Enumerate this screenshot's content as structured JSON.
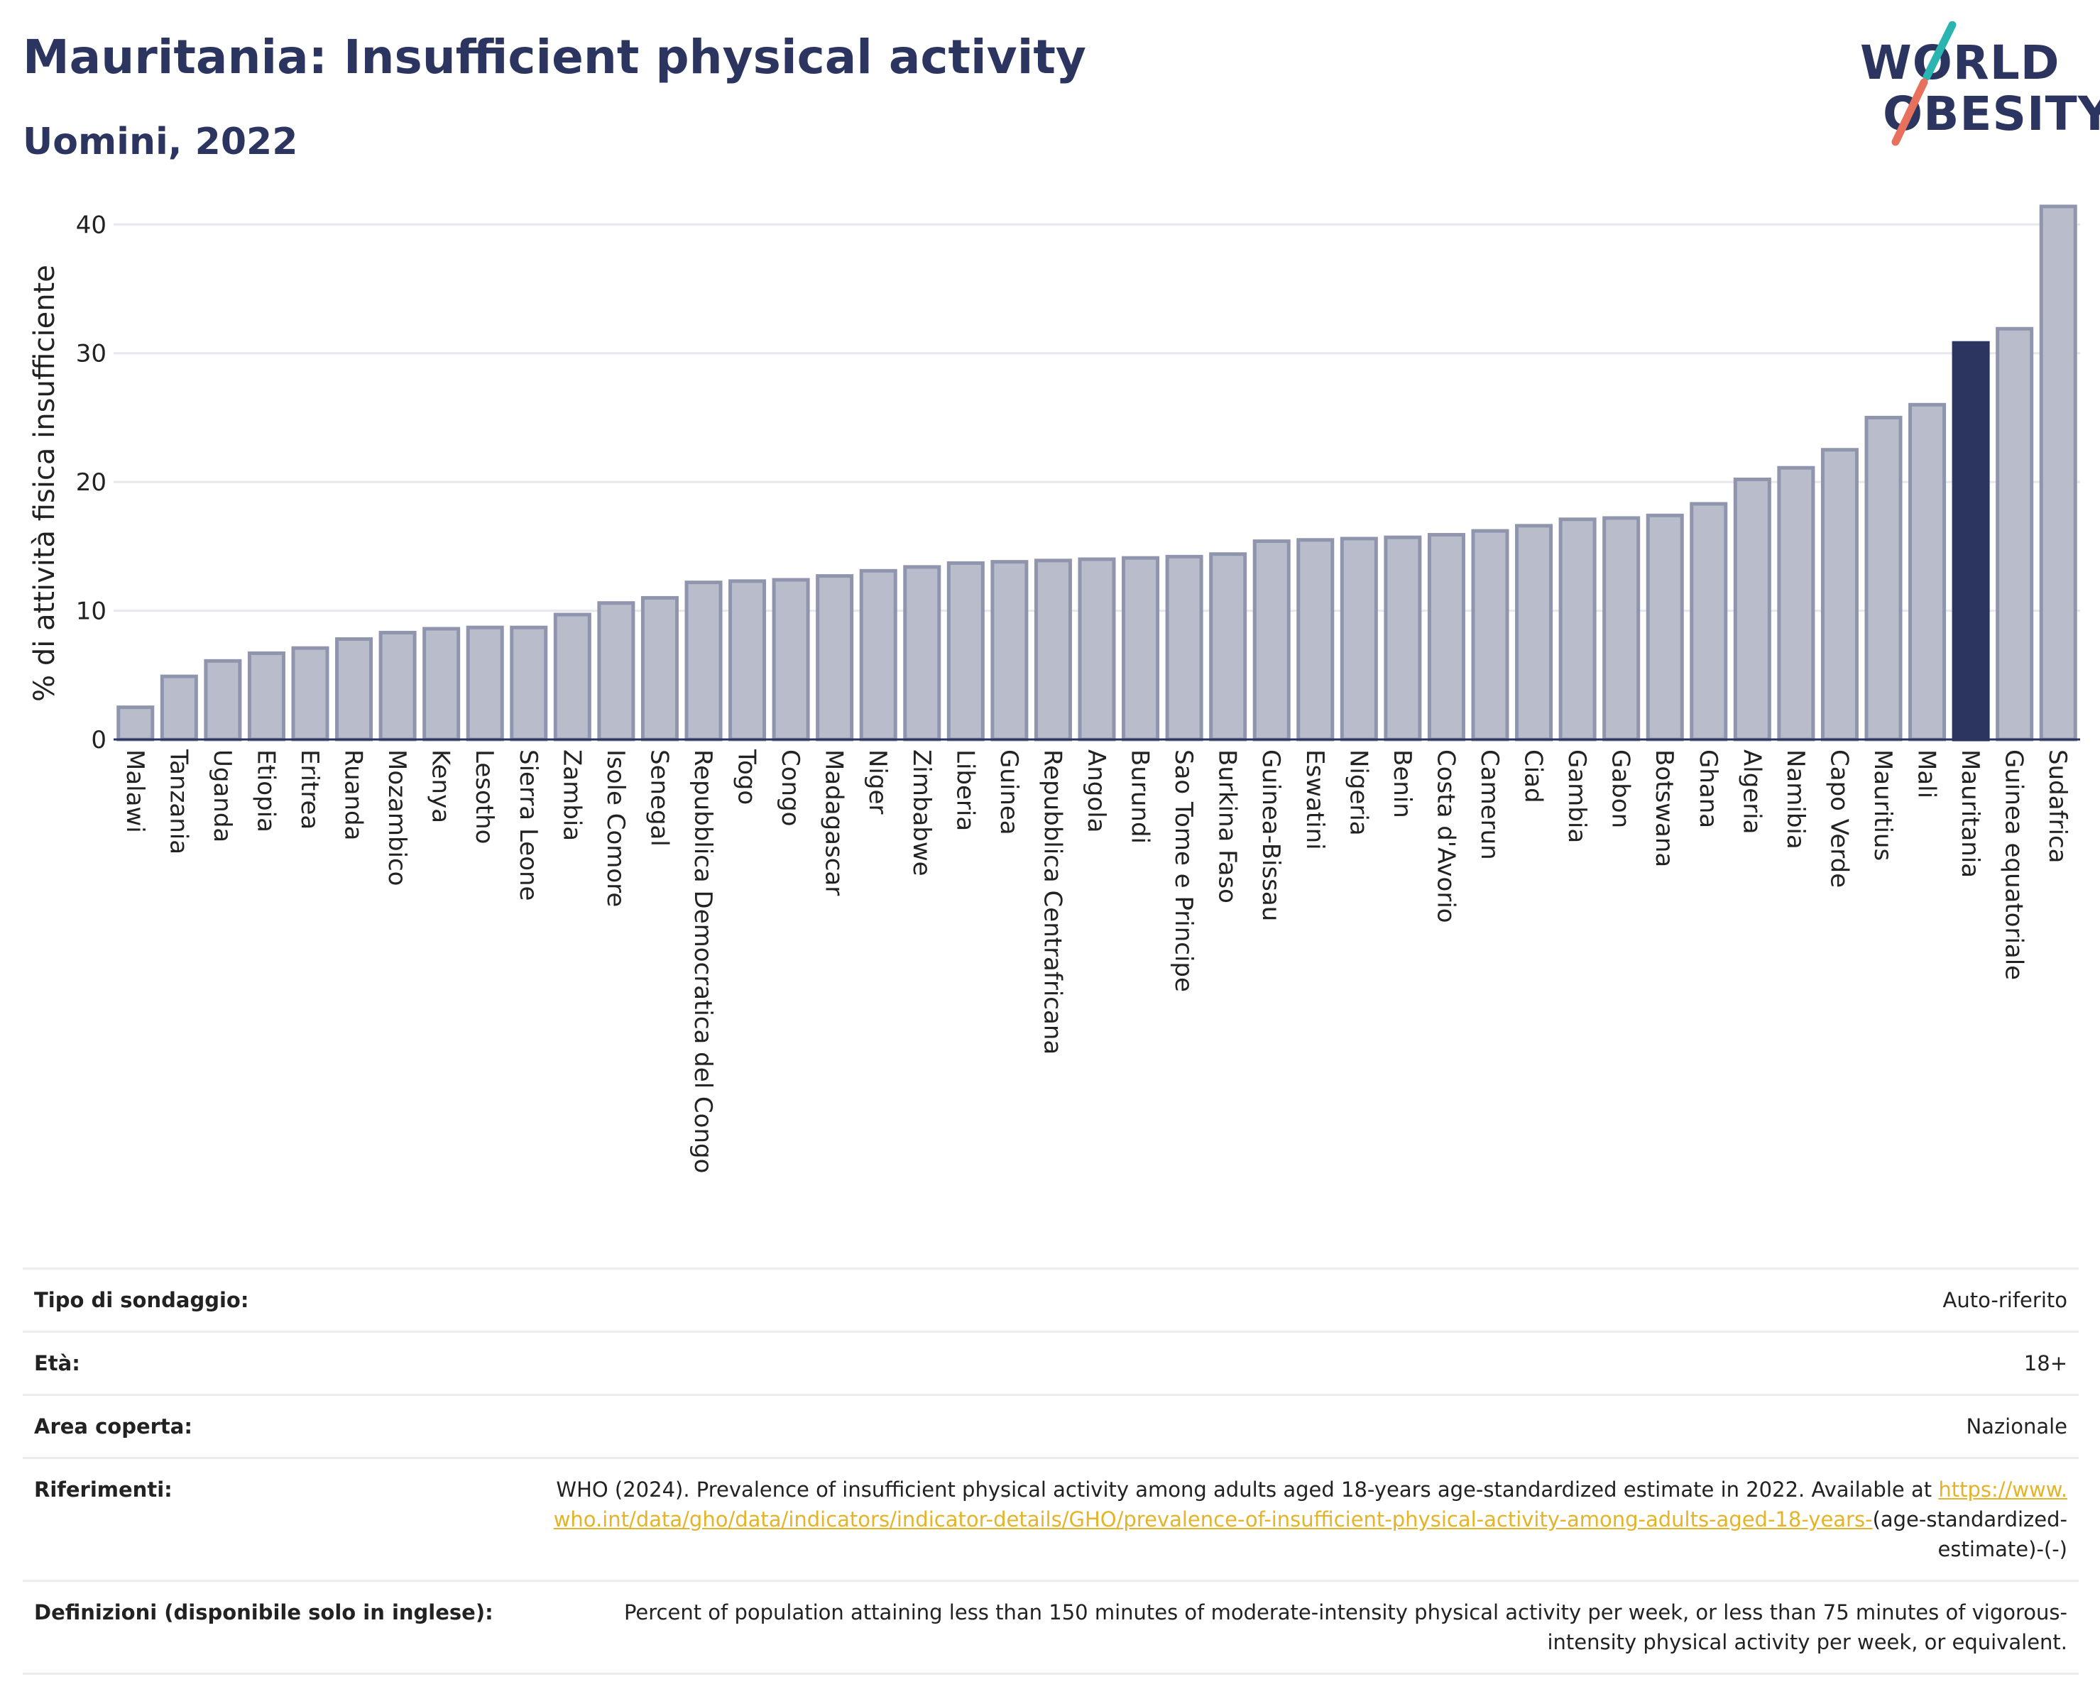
{
  "header": {
    "title": "Mauritania: Insufficient physical activity",
    "subtitle": "Uomini, 2022"
  },
  "logo": {
    "line1": "WORLD",
    "line2": "OBESITY",
    "accent_colors": [
      "#2bb5b0",
      "#e8715e"
    ]
  },
  "colors": {
    "highlight_bar": "#2c3560",
    "other_bars": "#b9bdcb",
    "other_bar_stroke": "#8f95ad",
    "text_dark": "#2c3560",
    "link": "#e5b327"
  },
  "chart_data": {
    "type": "bar",
    "title": "",
    "xlabel": "",
    "ylabel": "% di attività fisica insufficiente",
    "ylim": [
      0,
      42
    ],
    "yticks": [
      0,
      10,
      20,
      30,
      40
    ],
    "grid": true,
    "highlight": "Mauritania",
    "categories": [
      "Malawi",
      "Tanzania",
      "Uganda",
      "Etiopia",
      "Eritrea",
      "Ruanda",
      "Mozambico",
      "Kenya",
      "Lesotho",
      "Sierra Leone",
      "Zambia",
      "Isole Comore",
      "Senegal",
      "Repubblica Democratica del Congo",
      "Togo",
      "Congo",
      "Madagascar",
      "Niger",
      "Zimbabwe",
      "Liberia",
      "Guinea",
      "Repubblica Centrafricana",
      "Angola",
      "Burundi",
      "Sao Tome e Principe",
      "Burkina Faso",
      "Guinea-Bissau",
      "Eswatini",
      "Nigeria",
      "Benin",
      "Costa d'Avorio",
      "Camerun",
      "Ciad",
      "Gambia",
      "Gabon",
      "Botswana",
      "Ghana",
      "Algeria",
      "Namibia",
      "Capo Verde",
      "Mauritius",
      "Mali",
      "Mauritania",
      "Guinea equatoriale",
      "Sudafrica"
    ],
    "values": [
      2.5,
      4.9,
      6.1,
      6.7,
      7.1,
      7.8,
      8.3,
      8.6,
      8.7,
      8.7,
      9.7,
      10.6,
      11.0,
      12.2,
      12.3,
      12.4,
      12.7,
      13.1,
      13.4,
      13.7,
      13.8,
      13.9,
      14.0,
      14.1,
      14.2,
      14.4,
      15.4,
      15.5,
      15.6,
      15.7,
      15.9,
      16.2,
      16.6,
      17.1,
      17.2,
      17.4,
      18.3,
      20.2,
      21.1,
      22.5,
      25.0,
      26.0,
      30.8,
      31.9,
      41.4
    ]
  },
  "details": [
    {
      "label": "Tipo di sondaggio:",
      "value": "Auto-riferito"
    },
    {
      "label": "Età:",
      "value": "18+"
    },
    {
      "label": "Area coperta:",
      "value": "Nazionale"
    },
    {
      "label": "Riferimenti:",
      "value_before": "WHO (2024). Prevalence of insufficient physical activity among adults aged 18-years age-standardized estimate in 2022. Available at",
      "link": "https://www.who.int/data/gho/data/indicators/indicator-details/GHO/prevalence-of-insufficient-physical-activity-among-adults-aged-18-years-",
      "value_after": "(age-standardized-estimate)-(-)"
    },
    {
      "label": "Definizioni (disponibile solo in inglese):",
      "value": "Percent of population attaining less than 150 minutes of moderate-intensity physical activity per week, or less than 75 minutes of vigorous-intensity physical activity per week, or equivalent."
    }
  ]
}
